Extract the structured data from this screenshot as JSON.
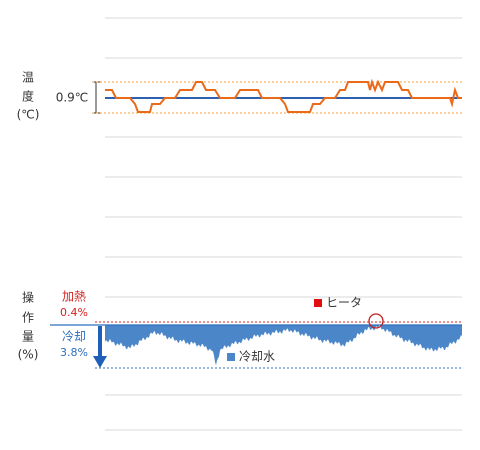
{
  "temperature": {
    "label_chars": [
      "温",
      "度",
      "(℃)"
    ],
    "band": "0.9℃"
  },
  "output": {
    "label_chars": [
      "操",
      "作",
      "量",
      "(%)"
    ],
    "heating": {
      "name": "加熱",
      "value": "0.4%"
    },
    "cooling": {
      "name": "冷却",
      "value": "3.8%"
    },
    "legend": [
      "ヒータ",
      "冷却水"
    ]
  }
}
